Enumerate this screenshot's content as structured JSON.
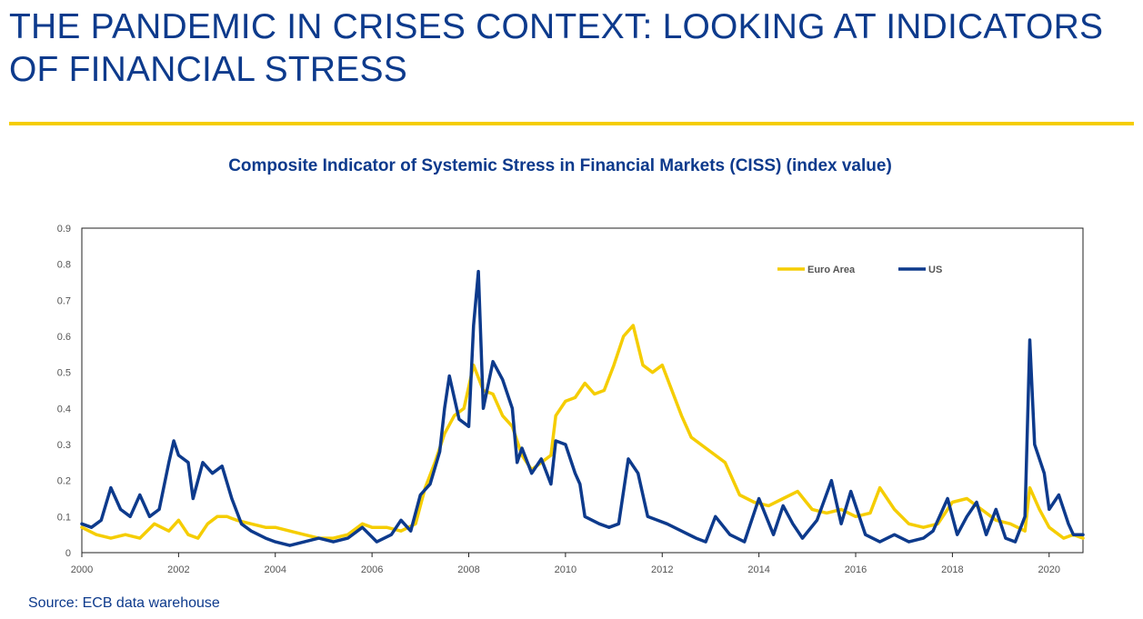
{
  "slide": {
    "title": "THE PANDEMIC IN CRISES CONTEXT: LOOKING AT INDICATORS OF FINANCIAL STRESS",
    "source": "Source: ECB data warehouse"
  },
  "colors": {
    "title": "#0d3a8c",
    "rule": "#f5cd00",
    "euro_area": "#f5cd00",
    "us": "#0d3a8c"
  },
  "chart_data": {
    "type": "line",
    "title": "Composite Indicator of Systemic Stress in Financial Markets (CISS) (index value)",
    "xlabel": "",
    "ylabel": "",
    "xlim": [
      2000,
      2020.7
    ],
    "ylim": [
      0,
      0.9
    ],
    "y_ticks": [
      "0",
      "0.1",
      "0.2",
      "0.3",
      "0.4",
      "0.5",
      "0.6",
      "0.7",
      "0.8",
      "0.9"
    ],
    "x_ticks": [
      "2000",
      "2002",
      "2004",
      "2006",
      "2008",
      "2010",
      "2012",
      "2014",
      "2016",
      "2018",
      "2020"
    ],
    "grid": false,
    "legend_position": "top-right",
    "series": [
      {
        "name": "Euro Area",
        "color": "#f5cd00",
        "x": [
          2000.0,
          2000.3,
          2000.6,
          2000.9,
          2001.2,
          2001.5,
          2001.8,
          2002.0,
          2002.2,
          2002.4,
          2002.6,
          2002.8,
          2003.0,
          2003.2,
          2003.5,
          2003.8,
          2004.0,
          2004.3,
          2004.6,
          2004.9,
          2005.2,
          2005.5,
          2005.8,
          2006.0,
          2006.3,
          2006.6,
          2006.9,
          2007.1,
          2007.3,
          2007.5,
          2007.7,
          2007.9,
          2008.1,
          2008.3,
          2008.5,
          2008.7,
          2008.9,
          2009.1,
          2009.3,
          2009.5,
          2009.7,
          2009.8,
          2010.0,
          2010.2,
          2010.4,
          2010.6,
          2010.8,
          2011.0,
          2011.2,
          2011.4,
          2011.6,
          2011.8,
          2012.0,
          2012.2,
          2012.4,
          2012.6,
          2012.8,
          2013.0,
          2013.3,
          2013.6,
          2013.9,
          2014.2,
          2014.5,
          2014.8,
          2015.1,
          2015.4,
          2015.7,
          2016.0,
          2016.3,
          2016.5,
          2016.8,
          2017.1,
          2017.4,
          2017.7,
          2018.0,
          2018.3,
          2018.6,
          2018.9,
          2019.2,
          2019.5,
          2019.6,
          2019.8,
          2020.0,
          2020.3,
          2020.5,
          2020.7
        ],
        "values": [
          0.07,
          0.05,
          0.04,
          0.05,
          0.04,
          0.08,
          0.06,
          0.09,
          0.05,
          0.04,
          0.08,
          0.1,
          0.1,
          0.09,
          0.08,
          0.07,
          0.07,
          0.06,
          0.05,
          0.04,
          0.04,
          0.05,
          0.08,
          0.07,
          0.07,
          0.06,
          0.08,
          0.18,
          0.25,
          0.33,
          0.38,
          0.4,
          0.52,
          0.45,
          0.44,
          0.38,
          0.35,
          0.27,
          0.23,
          0.25,
          0.27,
          0.38,
          0.42,
          0.43,
          0.47,
          0.44,
          0.45,
          0.52,
          0.6,
          0.63,
          0.52,
          0.5,
          0.52,
          0.45,
          0.38,
          0.32,
          0.3,
          0.28,
          0.25,
          0.16,
          0.14,
          0.13,
          0.15,
          0.17,
          0.12,
          0.11,
          0.12,
          0.1,
          0.11,
          0.18,
          0.12,
          0.08,
          0.07,
          0.08,
          0.14,
          0.15,
          0.12,
          0.09,
          0.08,
          0.06,
          0.18,
          0.12,
          0.07,
          0.04,
          0.05,
          0.04
        ]
      },
      {
        "name": "US",
        "color": "#0d3a8c",
        "x": [
          2000.0,
          2000.2,
          2000.4,
          2000.6,
          2000.8,
          2001.0,
          2001.2,
          2001.4,
          2001.6,
          2001.8,
          2001.9,
          2002.0,
          2002.2,
          2002.3,
          2002.5,
          2002.7,
          2002.9,
          2003.1,
          2003.3,
          2003.5,
          2003.8,
          2004.0,
          2004.3,
          2004.6,
          2004.9,
          2005.2,
          2005.5,
          2005.8,
          2006.1,
          2006.4,
          2006.6,
          2006.8,
          2007.0,
          2007.2,
          2007.4,
          2007.5,
          2007.6,
          2007.8,
          2008.0,
          2008.1,
          2008.2,
          2008.3,
          2008.5,
          2008.7,
          2008.9,
          2009.0,
          2009.1,
          2009.3,
          2009.5,
          2009.7,
          2009.8,
          2010.0,
          2010.2,
          2010.3,
          2010.4,
          2010.7,
          2010.9,
          2011.1,
          2011.3,
          2011.5,
          2011.7,
          2011.9,
          2012.1,
          2012.4,
          2012.7,
          2012.9,
          2013.1,
          2013.4,
          2013.7,
          2014.0,
          2014.3,
          2014.5,
          2014.7,
          2014.9,
          2015.2,
          2015.5,
          2015.7,
          2015.9,
          2016.2,
          2016.5,
          2016.8,
          2017.1,
          2017.4,
          2017.6,
          2017.9,
          2018.1,
          2018.3,
          2018.5,
          2018.7,
          2018.9,
          2019.1,
          2019.3,
          2019.5,
          2019.6,
          2019.7,
          2019.9,
          2020.0,
          2020.2,
          2020.4,
          2020.5,
          2020.7
        ],
        "values": [
          0.08,
          0.07,
          0.09,
          0.18,
          0.12,
          0.1,
          0.16,
          0.1,
          0.12,
          0.25,
          0.31,
          0.27,
          0.25,
          0.15,
          0.25,
          0.22,
          0.24,
          0.15,
          0.08,
          0.06,
          0.04,
          0.03,
          0.02,
          0.03,
          0.04,
          0.03,
          0.04,
          0.07,
          0.03,
          0.05,
          0.09,
          0.06,
          0.16,
          0.19,
          0.28,
          0.4,
          0.49,
          0.37,
          0.35,
          0.63,
          0.78,
          0.4,
          0.53,
          0.48,
          0.4,
          0.25,
          0.29,
          0.22,
          0.26,
          0.19,
          0.31,
          0.3,
          0.22,
          0.19,
          0.1,
          0.08,
          0.07,
          0.08,
          0.26,
          0.22,
          0.1,
          0.09,
          0.08,
          0.06,
          0.04,
          0.03,
          0.1,
          0.05,
          0.03,
          0.15,
          0.05,
          0.13,
          0.08,
          0.04,
          0.09,
          0.2,
          0.08,
          0.17,
          0.05,
          0.03,
          0.05,
          0.03,
          0.04,
          0.06,
          0.15,
          0.05,
          0.1,
          0.14,
          0.05,
          0.12,
          0.04,
          0.03,
          0.1,
          0.59,
          0.3,
          0.22,
          0.12,
          0.16,
          0.08,
          0.05,
          0.05
        ]
      }
    ]
  }
}
